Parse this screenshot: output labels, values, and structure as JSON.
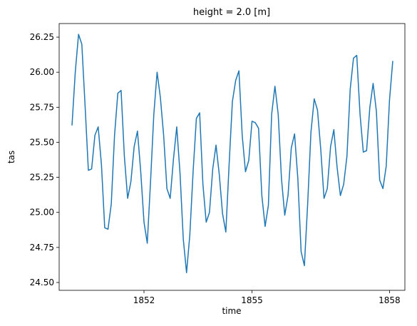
{
  "chart_data": {
    "type": "line",
    "title": "height = 2.0 [m]",
    "xlabel": "time",
    "ylabel": "tas",
    "categories": [
      null,
      null,
      null,
      null,
      null,
      null,
      null,
      null,
      null,
      null,
      null,
      null,
      null,
      null,
      null,
      null,
      null,
      null,
      null,
      null,
      null,
      null,
      "1852",
      null,
      null,
      null,
      null,
      null,
      null,
      null,
      null,
      null,
      null,
      null,
      null,
      null,
      null,
      null,
      null,
      null,
      null,
      null,
      null,
      null,
      null,
      null,
      null,
      null,
      null,
      null,
      null,
      null,
      null,
      null,
      null,
      "1855",
      null,
      null,
      null,
      null,
      null,
      null,
      null,
      null,
      null,
      null,
      null,
      null,
      null,
      null,
      null,
      null,
      null,
      null,
      null,
      null,
      null,
      null,
      null,
      null,
      null,
      null,
      null,
      null,
      null,
      null,
      null,
      null,
      null,
      null,
      null,
      null,
      null,
      null,
      null,
      null,
      null,
      "1858",
      null
    ],
    "values": [
      25.62,
      26.0,
      26.27,
      26.2,
      25.76,
      25.3,
      25.31,
      25.55,
      25.61,
      25.34,
      24.89,
      24.88,
      25.06,
      25.55,
      25.85,
      25.87,
      25.4,
      25.1,
      25.22,
      25.47,
      25.58,
      25.29,
      24.93,
      24.78,
      25.22,
      25.7,
      26.0,
      25.82,
      25.55,
      25.17,
      25.1,
      25.38,
      25.61,
      25.28,
      24.81,
      24.57,
      24.84,
      25.29,
      25.67,
      25.71,
      25.2,
      24.93,
      25.0,
      25.31,
      25.48,
      25.27,
      24.99,
      24.86,
      25.34,
      25.79,
      25.94,
      26.01,
      25.55,
      25.29,
      25.37,
      25.65,
      25.64,
      25.6,
      25.12,
      24.9,
      25.05,
      25.7,
      25.9,
      25.7,
      25.24,
      24.98,
      25.12,
      25.46,
      25.56,
      25.24,
      24.72,
      24.62,
      25.06,
      25.57,
      25.81,
      25.73,
      25.45,
      25.1,
      25.17,
      25.47,
      25.59,
      25.32,
      25.12,
      25.2,
      25.4,
      25.88,
      26.1,
      26.12,
      25.7,
      25.43,
      25.44,
      25.75,
      25.92,
      25.72,
      25.23,
      25.17,
      25.33,
      25.8,
      26.08
    ],
    "color": "#1f77b4",
    "ylim": [
      24.444,
      26.347
    ],
    "yticks": [
      {
        "value": 24.5,
        "label": "24.50"
      },
      {
        "value": 24.75,
        "label": "24.75"
      },
      {
        "value": 25.0,
        "label": "25.00"
      },
      {
        "value": 25.25,
        "label": "25.25"
      },
      {
        "value": 25.5,
        "label": "25.50"
      },
      {
        "value": 25.75,
        "label": "25.75"
      },
      {
        "value": 26.0,
        "label": "26.00"
      },
      {
        "value": 26.25,
        "label": "26.25"
      }
    ],
    "grid": false
  }
}
